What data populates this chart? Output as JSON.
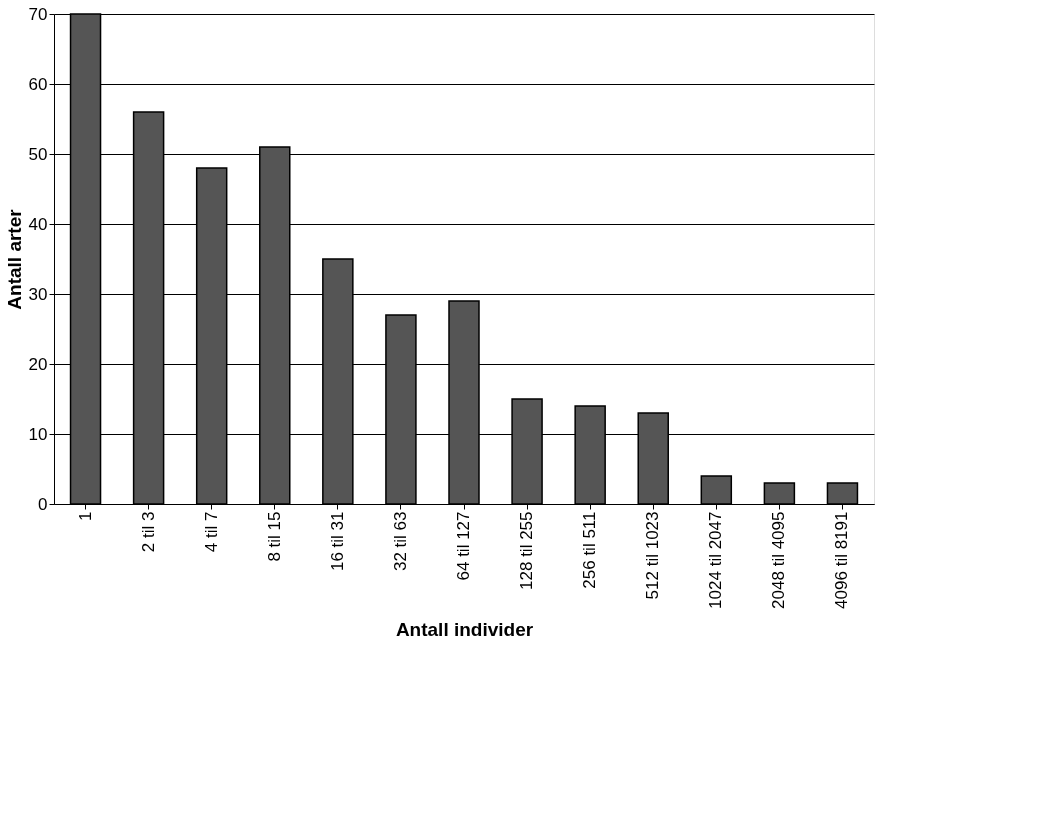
{
  "chart_data": {
    "type": "bar",
    "xlabel": "Antall individer",
    "ylabel": "Antall arter",
    "categories": [
      "1",
      "2 til 3",
      "4 til 7",
      "8 til 15",
      "16 til 31",
      "32 til 63",
      "64 til 127",
      "128 til 255",
      "256 til 511",
      "512 til 1023",
      "1024 til 2047",
      "2048 til 4095",
      "4096 til 8191"
    ],
    "values": [
      70,
      56,
      48,
      51,
      35,
      27,
      29,
      15,
      14,
      13,
      4,
      3,
      3
    ],
    "color": "#555555",
    "ylim": [
      0,
      70
    ],
    "yticks": [
      0,
      10,
      20,
      30,
      40,
      50,
      60,
      70
    ],
    "grid": "y"
  }
}
